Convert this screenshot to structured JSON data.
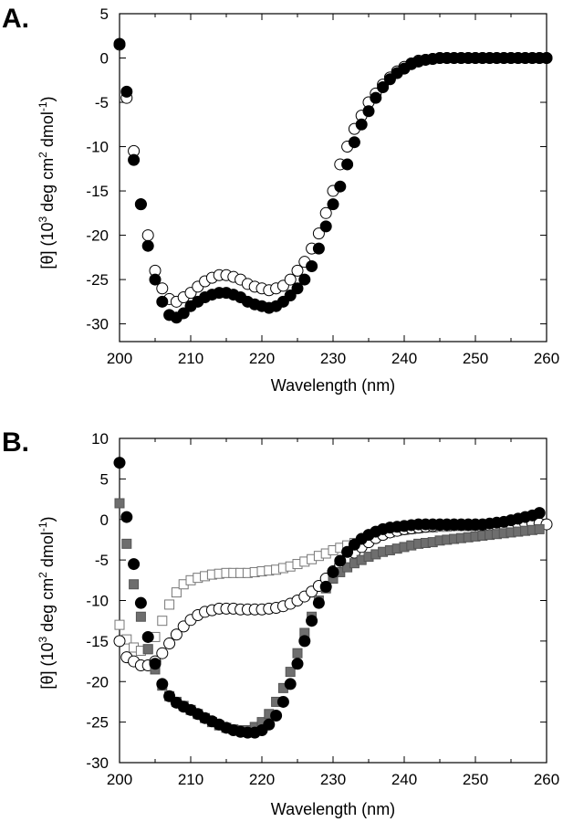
{
  "chart_data": [
    {
      "panel": "A.",
      "type": "scatter",
      "xlabel": "Wavelength (nm)",
      "ylabel": {
        "main": "[θ] (10",
        "exp1": "3",
        "mid": " deg cm",
        "exp2": "2",
        "tail": " dmol",
        "exp3": "-1",
        "end": ")"
      },
      "xlim": [
        200,
        260
      ],
      "ylim": [
        -32,
        5
      ],
      "xticks": [
        200,
        210,
        220,
        230,
        240,
        250,
        260
      ],
      "yticks": [
        5,
        0,
        -5,
        -10,
        -15,
        -20,
        -25,
        -30
      ],
      "series": [
        {
          "name": "open circles",
          "marker": "circle-open",
          "x": [
            200,
            201,
            202,
            203,
            204,
            205,
            206,
            207,
            208,
            209,
            210,
            211,
            212,
            213,
            214,
            215,
            216,
            217,
            218,
            219,
            220,
            221,
            222,
            223,
            224,
            225,
            226,
            227,
            228,
            229,
            230,
            231,
            232,
            233,
            234,
            235,
            236,
            237,
            238,
            239,
            240,
            241,
            242,
            243,
            244,
            245,
            246,
            247,
            248,
            249,
            250,
            251,
            252,
            253,
            254,
            255,
            256,
            257,
            258,
            259,
            260
          ],
          "y": [
            1.5,
            -4.5,
            -10.5,
            -16.5,
            -20,
            -24,
            -26,
            -27.2,
            -27.5,
            -27,
            -26.5,
            -25.8,
            -25.2,
            -24.8,
            -24.5,
            -24.5,
            -24.7,
            -25,
            -25.5,
            -25.8,
            -26,
            -26.2,
            -26,
            -25.7,
            -25,
            -24,
            -23,
            -21.5,
            -19.8,
            -17.5,
            -15,
            -12,
            -10,
            -8,
            -6.5,
            -5,
            -4,
            -3,
            -2.2,
            -1.5,
            -1,
            -0.6,
            -0.3,
            -0.2,
            -0.1,
            0,
            0,
            0,
            0,
            0,
            0,
            0,
            0,
            0,
            0,
            0,
            0,
            0,
            0,
            0,
            0
          ]
        },
        {
          "name": "filled circles",
          "marker": "circle-filled",
          "x": [
            200,
            201,
            202,
            203,
            204,
            205,
            206,
            207,
            208,
            209,
            210,
            211,
            212,
            213,
            214,
            215,
            216,
            217,
            218,
            219,
            220,
            221,
            222,
            223,
            224,
            225,
            226,
            227,
            228,
            229,
            230,
            231,
            232,
            233,
            234,
            235,
            236,
            237,
            238,
            239,
            240,
            241,
            242,
            243,
            244,
            245,
            246,
            247,
            248,
            249,
            250,
            251,
            252,
            253,
            254,
            255,
            256,
            257,
            258,
            259,
            260
          ],
          "y": [
            1.6,
            -3.8,
            -11.5,
            -16.5,
            -21.2,
            -25,
            -27.5,
            -29,
            -29.3,
            -28.8,
            -28,
            -27.5,
            -27,
            -26.7,
            -26.5,
            -26.5,
            -26.7,
            -27,
            -27.5,
            -27.8,
            -28,
            -28.2,
            -28,
            -27.5,
            -26.8,
            -26,
            -25,
            -23.5,
            -21.5,
            -19,
            -16.5,
            -14.5,
            -12,
            -9.5,
            -7.5,
            -6,
            -4.5,
            -3.3,
            -2.4,
            -1.7,
            -1.2,
            -0.7,
            -0.4,
            -0.2,
            -0.1,
            0,
            0,
            0,
            0,
            0,
            0,
            0,
            0,
            0,
            0,
            0,
            0,
            0,
            0,
            0,
            0
          ]
        }
      ]
    },
    {
      "panel": "B.",
      "type": "scatter",
      "xlabel": "Wavelength (nm)",
      "ylabel": {
        "main": "[θ] (10",
        "exp1": "3",
        "mid": " deg cm",
        "exp2": "2",
        "tail": " dmol",
        "exp3": "-1",
        "end": ")"
      },
      "xlim": [
        200,
        260
      ],
      "ylim": [
        -30,
        10
      ],
      "xticks": [
        200,
        210,
        220,
        230,
        240,
        250,
        260
      ],
      "yticks": [
        10,
        5,
        0,
        -5,
        -10,
        -15,
        -20,
        -25,
        -30
      ],
      "series": [
        {
          "name": "open squares",
          "marker": "square-open",
          "x": [
            200,
            201,
            202,
            203,
            204,
            205,
            206,
            207,
            208,
            209,
            210,
            211,
            212,
            213,
            214,
            215,
            216,
            217,
            218,
            219,
            220,
            221,
            222,
            223,
            224,
            225,
            226,
            227,
            228,
            229,
            230,
            231,
            232,
            233,
            234,
            235,
            236,
            237,
            238,
            239,
            240,
            241,
            242,
            243,
            244,
            245,
            246,
            247,
            248,
            249,
            250,
            251,
            252,
            253,
            254,
            255,
            256,
            257,
            258,
            259
          ],
          "y": [
            -13,
            -14.8,
            -15.8,
            -16.2,
            -16,
            -14.5,
            -12.5,
            -10.5,
            -9,
            -8,
            -7.5,
            -7.2,
            -7,
            -6.8,
            -6.7,
            -6.6,
            -6.6,
            -6.6,
            -6.6,
            -6.5,
            -6.4,
            -6.3,
            -6.2,
            -6,
            -5.8,
            -5.5,
            -5.2,
            -4.9,
            -4.5,
            -4.2,
            -3.8,
            -3.5,
            -3.2,
            -2.9,
            -2.6,
            -2.3,
            -2,
            -1.8,
            -1.6,
            -1.4,
            -1.3,
            -1.2,
            -1.1,
            -1,
            -1,
            -0.9,
            -0.9,
            -0.8,
            -0.8,
            -0.8,
            -0.7,
            -0.7,
            -0.7,
            -0.7,
            -0.6,
            -0.6,
            -0.6,
            -0.6,
            -0.6,
            -0.6
          ]
        },
        {
          "name": "open circles",
          "marker": "circle-open",
          "x": [
            200,
            201,
            202,
            203,
            204,
            205,
            206,
            207,
            208,
            209,
            210,
            211,
            212,
            213,
            214,
            215,
            216,
            217,
            218,
            219,
            220,
            221,
            222,
            223,
            224,
            225,
            226,
            227,
            228,
            229,
            230,
            231,
            232,
            233,
            234,
            235,
            236,
            237,
            238,
            239,
            240,
            241,
            242,
            243,
            244,
            245,
            246,
            247,
            248,
            249,
            250,
            251,
            252,
            253,
            254,
            255,
            256,
            257,
            258,
            259,
            260
          ],
          "y": [
            -15,
            -17,
            -17.5,
            -18,
            -18,
            -17.5,
            -16.5,
            -15.3,
            -14.2,
            -13.2,
            -12.4,
            -11.8,
            -11.4,
            -11.2,
            -11,
            -11,
            -11,
            -11.1,
            -11.1,
            -11.1,
            -11.1,
            -11,
            -10.9,
            -10.7,
            -10.4,
            -10,
            -9.5,
            -8.9,
            -8.2,
            -7.3,
            -6.4,
            -5.6,
            -4.8,
            -4.1,
            -3.4,
            -2.8,
            -2.3,
            -1.9,
            -1.6,
            -1.4,
            -1.2,
            -1.1,
            -1,
            -0.9,
            -0.8,
            -0.7,
            -0.7,
            -0.7,
            -0.7,
            -0.7,
            -0.7,
            -0.7,
            -0.7,
            -0.7,
            -0.7,
            -0.6,
            -0.6,
            -0.5,
            -0.5,
            -0.5,
            -0.6
          ]
        },
        {
          "name": "gray squares",
          "marker": "square-gray",
          "x": [
            200,
            201,
            202,
            203,
            204,
            205,
            206,
            207,
            208,
            209,
            210,
            211,
            212,
            213,
            214,
            215,
            216,
            217,
            218,
            219,
            220,
            221,
            222,
            223,
            224,
            225,
            226,
            227,
            228,
            229,
            230,
            231,
            232,
            233,
            234,
            235,
            236,
            237,
            238,
            239,
            240,
            241,
            242,
            243,
            244,
            245,
            246,
            247,
            248,
            249,
            250,
            251,
            252,
            253,
            254,
            255,
            256,
            257,
            258,
            259
          ],
          "y": [
            2,
            -3,
            -8,
            -12,
            -16,
            -18.5,
            -20.5,
            -21.8,
            -22.5,
            -23,
            -23.5,
            -24,
            -24.5,
            -25,
            -25.4,
            -25.7,
            -25.9,
            -26,
            -26,
            -25.6,
            -25,
            -24,
            -22.5,
            -20.8,
            -18.8,
            -16.5,
            -14,
            -12,
            -10,
            -8.5,
            -7.3,
            -6.5,
            -5.9,
            -5.4,
            -5,
            -4.6,
            -4.3,
            -4,
            -3.8,
            -3.6,
            -3.4,
            -3.2,
            -3,
            -2.9,
            -2.8,
            -2.6,
            -2.5,
            -2.4,
            -2.3,
            -2.2,
            -2.1,
            -2,
            -1.9,
            -1.8,
            -1.7,
            -1.6,
            -1.5,
            -1.4,
            -1.3,
            -1.2
          ]
        },
        {
          "name": "filled circles",
          "marker": "circle-filled",
          "x": [
            200,
            201,
            202,
            203,
            204,
            205,
            206,
            207,
            208,
            209,
            210,
            211,
            212,
            213,
            214,
            215,
            216,
            217,
            218,
            219,
            220,
            221,
            222,
            223,
            224,
            225,
            226,
            227,
            228,
            229,
            230,
            231,
            232,
            233,
            234,
            235,
            236,
            237,
            238,
            239,
            240,
            241,
            242,
            243,
            244,
            245,
            246,
            247,
            248,
            249,
            250,
            251,
            252,
            253,
            254,
            255,
            256,
            257,
            258,
            259
          ],
          "y": [
            7,
            0.3,
            -5.5,
            -10.3,
            -14.5,
            -17.8,
            -20.3,
            -21.8,
            -22.6,
            -23.1,
            -23.5,
            -24,
            -24.5,
            -24.9,
            -25.3,
            -25.7,
            -26,
            -26.2,
            -26.3,
            -26.3,
            -26,
            -25.3,
            -24.2,
            -22.5,
            -20.3,
            -17.8,
            -15,
            -12.5,
            -10.3,
            -8.3,
            -6.5,
            -5.1,
            -4,
            -3.1,
            -2.4,
            -1.9,
            -1.5,
            -1.2,
            -1,
            -0.9,
            -0.8,
            -0.7,
            -0.6,
            -0.6,
            -0.6,
            -0.6,
            -0.6,
            -0.6,
            -0.6,
            -0.6,
            -0.6,
            -0.6,
            -0.5,
            -0.4,
            -0.3,
            -0.1,
            0.1,
            0.3,
            0.5,
            0.8
          ]
        }
      ]
    }
  ]
}
